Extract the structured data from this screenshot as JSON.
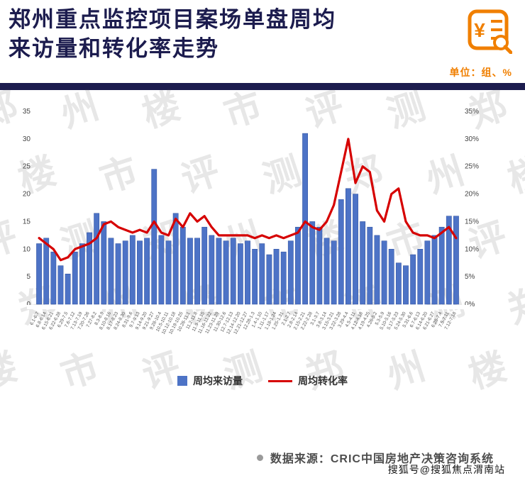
{
  "header": {
    "title_line1": "郑州重点监控项目案场单盘周均",
    "title_line2": "来访量和转化率走势",
    "unit_label": "单位：组、%",
    "icon_name": "price-report-magnifier-icon",
    "accent_color": "#f07f00",
    "title_color": "#1c1c4e"
  },
  "watermark": {
    "text": "郑州楼市评测"
  },
  "chart_data": {
    "type": "combo-bar-line",
    "title": "郑州重点监控项目案场单盘周均来访量和转化率走势",
    "grid": false,
    "legend_position": "bottom",
    "categories": [
      "6.1-6.7",
      "6.8-6.14",
      "6.15-6.21",
      "6.22-6.28",
      "6.29-7.5",
      "7.6-7.12",
      "7.13-7.19",
      "7.20-7.26",
      "7.27-8.2",
      "8.3-8.9",
      "8.10-8.16",
      "8.17-8.23",
      "8.24-8.30",
      "8.31-9.6",
      "9.7-9.13",
      "9.14-9.20",
      "9.21-9.27",
      "9.28-10.4",
      "10.5-10.11",
      "10.12-10.18",
      "10.19-10.25",
      "10.26-11.1",
      "11.2-11.8",
      "11.9-11.15",
      "11.16-11.22",
      "11.23-11.29",
      "11.30-12.6",
      "12.7-12.13",
      "12.14-12.20",
      "12.21-12.27",
      "12.28-1.3",
      "1.4-1.10",
      "1.11-1.17",
      "1.18-1.24",
      "1.25-1.31",
      "2.1-2.7",
      "2.8-2.14",
      "2.15-2.21",
      "2.22-2.28",
      "3.1-3.7",
      "3.8-3.14",
      "3.15-3.21",
      "3.22-3.28",
      "3.29-4.4",
      "4.5-4.11",
      "4.12-4.18",
      "4.19-4.25",
      "4.26-5.2",
      "5.3-5.9",
      "5.10-5.16",
      "5.17-5.23",
      "5.24-5.30",
      "5.31-6.6",
      "6.7-6.13",
      "6.14-6.20",
      "6.21-6.27",
      "6.28-7.4",
      "7.5-7.11",
      "7.12-7.18"
    ],
    "series": [
      {
        "name": "周均来访量",
        "chart": "bar",
        "unit": "组",
        "color": "#4d73c6",
        "border_color": "#2e4f9e",
        "values": [
          11,
          12,
          9.5,
          7,
          5.5,
          9.5,
          11,
          13,
          16.5,
          15,
          12,
          11,
          11.5,
          12.5,
          11.5,
          12,
          24.5,
          12.5,
          11.5,
          16.5,
          14,
          12,
          12,
          14,
          12.5,
          12,
          11.5,
          12,
          11,
          11.5,
          10,
          11,
          9,
          10,
          9.5,
          11.5,
          14,
          31,
          15,
          14,
          12,
          11.5,
          19,
          21,
          20,
          15,
          14,
          12.5,
          11.5,
          10,
          7.5,
          7,
          9,
          10,
          11.5,
          12.5,
          14,
          16,
          16
        ]
      },
      {
        "name": "周均转化率",
        "chart": "line",
        "unit": "%",
        "color": "#d60000",
        "values": [
          12,
          11,
          10,
          8,
          8.5,
          10,
          10.5,
          11,
          12,
          14.5,
          15,
          14,
          13.5,
          13,
          13.5,
          13,
          15,
          13,
          12.5,
          15.5,
          14,
          16.5,
          15,
          16,
          14,
          12.5,
          12.5,
          12.5,
          12.5,
          12.5,
          12,
          12.5,
          12,
          12.5,
          12,
          12.5,
          13,
          15,
          14,
          13.5,
          15,
          18,
          24,
          30,
          22,
          25,
          24,
          17,
          15,
          20,
          21,
          15,
          13,
          12.5,
          12.5,
          12,
          13,
          14,
          12
        ]
      }
    ],
    "left_axis": {
      "min": 0,
      "max": 35,
      "ticks": [
        0,
        5,
        10,
        15,
        20,
        25,
        30,
        35
      ],
      "tick_labels": [
        "0",
        "5",
        "10",
        "15",
        "20",
        "25",
        "30",
        "35"
      ]
    },
    "right_axis": {
      "min": 0,
      "max": 35,
      "ticks": [
        0,
        5,
        10,
        15,
        20,
        25,
        30,
        35
      ],
      "tick_labels": [
        "0%",
        "5%",
        "10%",
        "15%",
        "20%",
        "25%",
        "30%",
        "35%"
      ]
    }
  },
  "legend": [
    {
      "label": "周均来访量",
      "color": "#4d73c6",
      "swatch": "square"
    },
    {
      "label": "周均转化率",
      "color": "#d60000",
      "swatch": "line"
    }
  ],
  "footer": {
    "source": "数据来源：CRIC中国房地产决策咨询系统",
    "account": "搜狐号@搜狐焦点渭南站"
  }
}
